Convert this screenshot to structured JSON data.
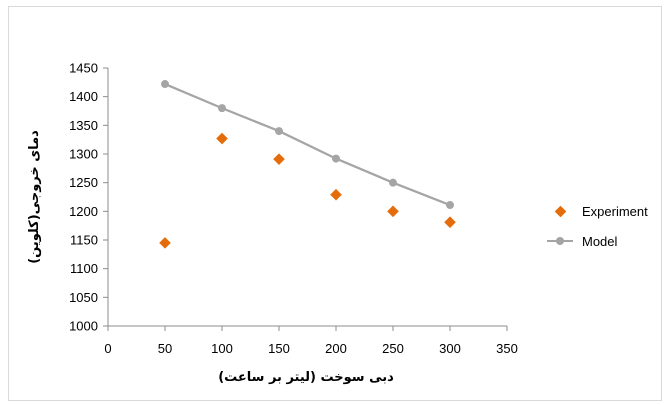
{
  "chart_data": {
    "type": "scatter",
    "xlabel": "دبی سوخت (لیتر بر ساعت)",
    "ylabel": "دمای خروجی(کلوین)",
    "xlim": [
      0,
      350
    ],
    "ylim": [
      1000,
      1450
    ],
    "xticks": [
      0,
      50,
      100,
      150,
      200,
      250,
      300,
      350
    ],
    "yticks": [
      1000,
      1050,
      1100,
      1150,
      1200,
      1250,
      1300,
      1350,
      1400,
      1450
    ],
    "grid": false,
    "legend_position": "right",
    "series": [
      {
        "name": "Experiment",
        "marker": "diamond",
        "color": "#E46C0A",
        "x": [
          50,
          100,
          150,
          200,
          250,
          300
        ],
        "y": [
          1145,
          1327,
          1291,
          1229,
          1200,
          1181
        ]
      },
      {
        "name": "Model",
        "marker": "circle-line",
        "color": "#A5A5A5",
        "x": [
          50,
          100,
          150,
          200,
          250,
          300
        ],
        "y": [
          1422,
          1380,
          1340,
          1292,
          1250,
          1211
        ]
      }
    ]
  }
}
